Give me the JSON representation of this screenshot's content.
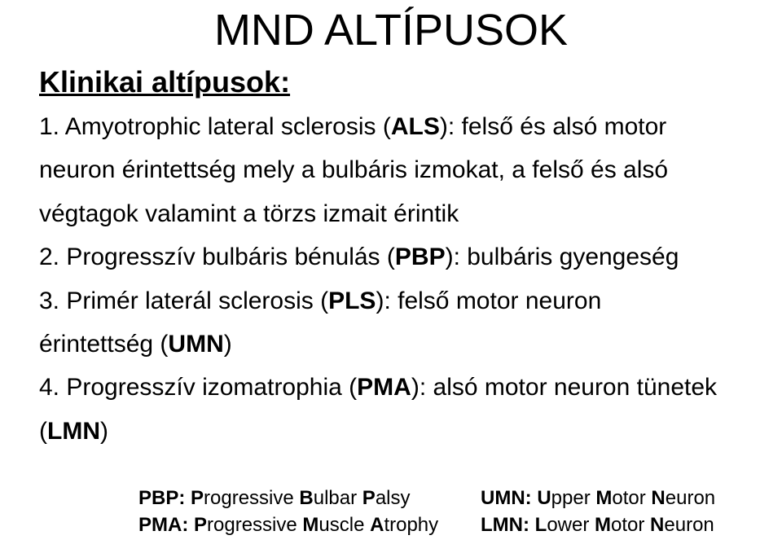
{
  "colors": {
    "background": "#ffffff",
    "text": "#000000"
  },
  "typography": {
    "title_fontsize": 54,
    "subheading_fontsize": 36,
    "body_fontsize": 30,
    "legend_fontsize": 24,
    "font_family": "Arial"
  },
  "title": "MND ALTÍPUSOK",
  "subheading": "Klinikai altípusok:",
  "items": [
    {
      "num": "1.",
      "lead": " Amyotrophic lateral sclerosis (",
      "abbr": "ALS",
      "tail1": "): felső és alsó motor",
      "line2": "neuron érintettség mely a bulbáris izmokat, a felső és alsó",
      "line3": "végtagok valamint a törzs izmait érintik"
    },
    {
      "num": "2.",
      "lead": " Progresszív bulbáris bénulás (",
      "abbr": "PBP",
      "tail1": "): bulbáris gyengeség"
    },
    {
      "num": "3.",
      "lead": " Primér laterál sclerosis (",
      "abbr": "PLS",
      "tail1": "): felső motor neuron",
      "line2_pre": "érintettség ",
      "line2_paren_open": "(",
      "line2_abbr": "UMN",
      "line2_paren_close": ")"
    },
    {
      "num": "4.",
      "lead": " Progresszív izomatrophia (",
      "abbr": "PMA",
      "tail1": "): alsó motor neuron tünetek",
      "line2_paren_open": "(",
      "line2_abbr": "LMN",
      "line2_paren_close": ")"
    }
  ],
  "legend": {
    "row1_left_pre": "PBP: ",
    "row1_left_b1": "P",
    "row1_left_mid1": "rogressive ",
    "row1_left_b2": "B",
    "row1_left_mid2": "ulbar ",
    "row1_left_b3": "P",
    "row1_left_mid3": "alsy",
    "row1_right_pre": "UMN: ",
    "row1_right_b1": "U",
    "row1_right_mid1": "pper ",
    "row1_right_b2": "M",
    "row1_right_mid2": "otor ",
    "row1_right_b3": "N",
    "row1_right_mid3": "euron",
    "row2_left_pre": "PMA: ",
    "row2_left_b1": "P",
    "row2_left_mid1": "rogressive ",
    "row2_left_b2": "M",
    "row2_left_mid2": "uscle ",
    "row2_left_b3": "A",
    "row2_left_mid3": "trophy",
    "row2_right_pre": "LMN: ",
    "row2_right_b1": "L",
    "row2_right_mid1": "ower ",
    "row2_right_b2": "M",
    "row2_right_mid2": "otor ",
    "row2_right_b3": "N",
    "row2_right_mid3": "euron"
  }
}
